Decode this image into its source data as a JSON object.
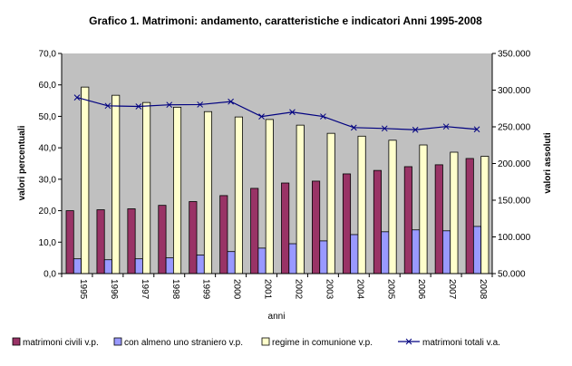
{
  "chart_data": {
    "type": "bar",
    "title": "Grafico 1. Matrimoni: andamento, caratteristiche e indicatori Anni 1995-2008",
    "xlabel": "anni",
    "ylabel": "valori percentuali",
    "y2label": "valori assoluti",
    "ylim": [
      0,
      70
    ],
    "y2lim": [
      50000,
      350000
    ],
    "yticks": [
      "0,0",
      "10,0",
      "20,0",
      "30,0",
      "40,0",
      "50,0",
      "60,0",
      "70,0"
    ],
    "y2ticks": [
      "50.000",
      "100.000",
      "150.000",
      "200.000",
      "250.000",
      "300.000",
      "350.000"
    ],
    "grid": false,
    "legend_position": "bottom",
    "categories": [
      "1995",
      "1996",
      "1997",
      "1998",
      "1999",
      "2000",
      "2001",
      "2002",
      "2003",
      "2004",
      "2005",
      "2006",
      "2007",
      "2008"
    ],
    "series": [
      {
        "name": "matrimoni civili v.p.",
        "type": "bar",
        "axis": "left",
        "color": "#993366",
        "values": [
          20.0,
          20.3,
          20.6,
          21.7,
          22.9,
          24.8,
          27.1,
          28.8,
          29.4,
          31.7,
          32.8,
          34.0,
          34.6,
          36.6
        ]
      },
      {
        "name": "con almeno uno straniero v.p.",
        "type": "bar",
        "axis": "left",
        "color": "#9999FF",
        "values": [
          4.7,
          4.4,
          4.7,
          5.0,
          5.9,
          7.0,
          8.1,
          9.5,
          10.4,
          12.4,
          13.3,
          13.9,
          13.6,
          15.0
        ]
      },
      {
        "name": "regime in comunione v.p.",
        "type": "bar",
        "axis": "left",
        "color": "#FFFFCC",
        "values": [
          59.3,
          56.7,
          54.4,
          52.9,
          51.5,
          49.8,
          49.0,
          47.2,
          44.6,
          43.7,
          42.4,
          40.9,
          38.6,
          37.3
        ]
      },
      {
        "name": "matrimoni totali v.a.",
        "type": "line",
        "axis": "right",
        "color": "#000080",
        "values": [
          290009,
          278611,
          277738,
          280034,
          280330,
          284410,
          264026,
          270013,
          264097,
          248969,
          247740,
          245992,
          250360,
          246613
        ]
      }
    ]
  }
}
